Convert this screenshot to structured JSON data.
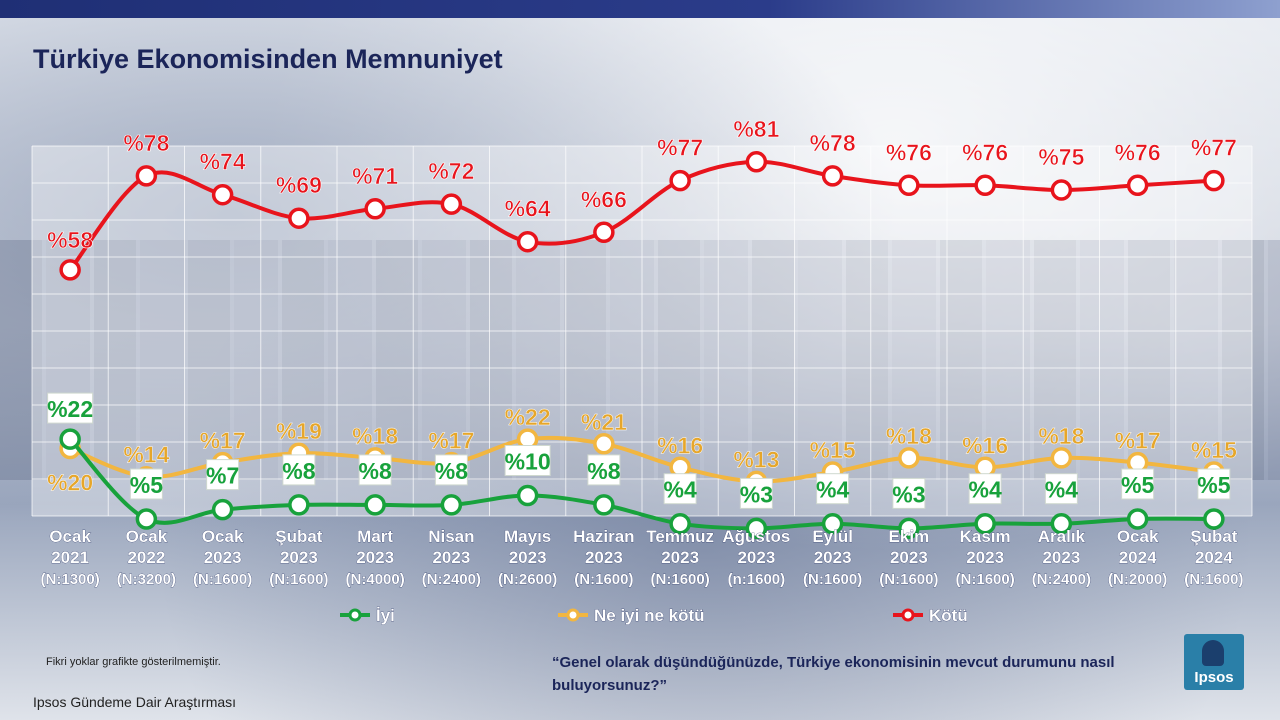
{
  "page": {
    "title": "Türkiye Ekonomisinden Memnuniyet",
    "footnote": "Fikri yoklar grafikte gösterilmemiştir.",
    "source": "Ipsos  Gündeme  Dair Araştırması",
    "question": "“Genel olarak düşündüğünüzde, Türkiye ekonomisinin mevcut durumunu nasıl buluyorsunuz?”",
    "logo_text": "Ipsos"
  },
  "chart_data": {
    "type": "line",
    "title": "Türkiye Ekonomisinden Memnuniyet",
    "xlabel": "",
    "ylabel": "",
    "ylim": [
      0,
      100
    ],
    "grid": true,
    "legend": "bottom",
    "value_prefix": "%",
    "categories": [
      {
        "month": "Ocak",
        "year": "2021",
        "n": "(N:1300)"
      },
      {
        "month": "Ocak",
        "year": "2022",
        "n": "(N:3200)"
      },
      {
        "month": "Ocak",
        "year": "2023",
        "n": "(N:1600)"
      },
      {
        "month": "Şubat",
        "year": "2023",
        "n": "(N:1600)"
      },
      {
        "month": "Mart",
        "year": "2023",
        "n": "(N:4000)"
      },
      {
        "month": "Nisan",
        "year": "2023",
        "n": "(N:2400)"
      },
      {
        "month": "Mayıs",
        "year": "2023",
        "n": "(N:2600)"
      },
      {
        "month": "Haziran",
        "year": "2023",
        "n": "(N:1600)"
      },
      {
        "month": "Temmuz",
        "year": "2023",
        "n": "(N:1600)"
      },
      {
        "month": "Ağustos",
        "year": "2023",
        "n": "(n:1600)"
      },
      {
        "month": "Eylül",
        "year": "2023",
        "n": "(N:1600)"
      },
      {
        "month": "Ekim",
        "year": "2023",
        "n": "(N:1600)"
      },
      {
        "month": "Kasım",
        "year": "2023",
        "n": "(N:1600)"
      },
      {
        "month": "Aralık",
        "year": "2023",
        "n": "(N:2400)"
      },
      {
        "month": "Ocak",
        "year": "2024",
        "n": "(N:2000)"
      },
      {
        "month": "Şubat",
        "year": "2024",
        "n": "(N:1600)"
      }
    ],
    "series": [
      {
        "key": "kotu",
        "name": "Kötü",
        "color": "#e8141c",
        "values": [
          58,
          78,
          74,
          69,
          71,
          72,
          64,
          66,
          77,
          81,
          78,
          76,
          76,
          75,
          76,
          77
        ]
      },
      {
        "key": "neutral",
        "name": "Ne iyi ne kötü",
        "color": "#f2b640",
        "values": [
          20,
          14,
          17,
          19,
          18,
          17,
          22,
          21,
          16,
          13,
          15,
          18,
          16,
          18,
          17,
          15
        ]
      },
      {
        "key": "iyi",
        "name": "İyi",
        "color": "#18a23c",
        "values": [
          22,
          5,
          7,
          8,
          8,
          8,
          10,
          8,
          4,
          3,
          4,
          3,
          4,
          4,
          5,
          5
        ]
      }
    ]
  }
}
